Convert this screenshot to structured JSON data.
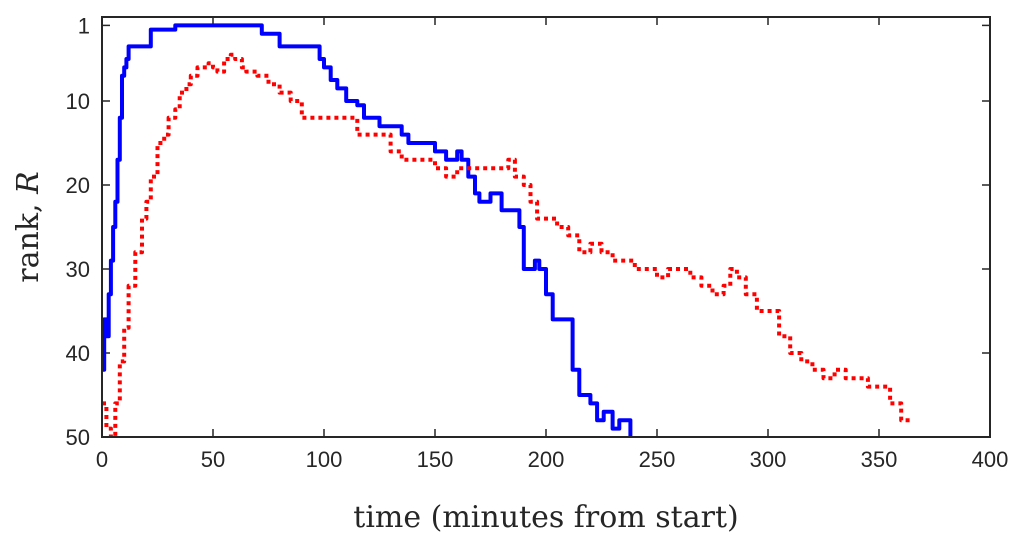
{
  "chart_data": {
    "type": "line",
    "title": "",
    "xlabel": "time (minutes from start)",
    "ylabel_text": "rank, ",
    "ylabel_var": "R",
    "xlim": [
      0,
      400
    ],
    "ylim": [
      50,
      0
    ],
    "y_reversed": true,
    "xticks": [
      0,
      50,
      100,
      150,
      200,
      250,
      300,
      350,
      400
    ],
    "yticks": [
      1,
      10,
      20,
      30,
      40,
      50
    ],
    "grid": false,
    "legend": "none",
    "series": [
      {
        "color": "#0000ff",
        "style": "solid",
        "x": [
          0,
          1,
          2,
          3,
          4,
          5,
          6,
          7,
          8,
          9,
          10,
          11,
          12,
          14,
          18,
          20,
          22,
          30,
          33,
          40,
          50,
          60,
          70,
          72,
          80,
          90,
          95,
          98,
          100,
          103,
          106,
          110,
          115,
          118,
          120,
          125,
          130,
          135,
          138,
          140,
          145,
          150,
          155,
          160,
          162,
          165,
          168,
          170,
          175,
          180,
          185,
          188,
          190,
          192,
          195,
          197,
          200,
          203,
          206,
          210,
          212,
          215,
          220,
          223,
          226,
          230,
          233,
          236,
          238
        ],
        "y": [
          42,
          36,
          38,
          33,
          29,
          25,
          22,
          17,
          12,
          7,
          6,
          5,
          3.5,
          3.5,
          3.5,
          3.5,
          1.5,
          1.5,
          1,
          1,
          1,
          1,
          1,
          2,
          3.5,
          3.5,
          3.5,
          5,
          6,
          7.5,
          8.5,
          10,
          10.5,
          12,
          12,
          13,
          13,
          14,
          15,
          15,
          15,
          16,
          17,
          16,
          17,
          19,
          21,
          22,
          21,
          23,
          23,
          25,
          30,
          30,
          29,
          30,
          33,
          36,
          36,
          36,
          42,
          45,
          46,
          48,
          47,
          49,
          48,
          48,
          50
        ]
      },
      {
        "color": "#ff0000",
        "style": "dotted",
        "x": [
          0,
          2,
          4,
          6,
          8,
          10,
          12,
          15,
          18,
          20,
          22,
          25,
          28,
          30,
          33,
          35,
          38,
          40,
          43,
          45,
          48,
          50,
          52,
          55,
          58,
          60,
          63,
          65,
          70,
          75,
          80,
          85,
          90,
          95,
          100,
          105,
          110,
          115,
          120,
          125,
          130,
          135,
          140,
          145,
          150,
          155,
          160,
          165,
          170,
          175,
          180,
          183,
          186,
          190,
          193,
          196,
          200,
          205,
          210,
          215,
          220,
          225,
          230,
          235,
          240,
          245,
          250,
          255,
          260,
          265,
          270,
          275,
          280,
          283,
          286,
          290,
          295,
          300,
          305,
          310,
          315,
          320,
          325,
          330,
          335,
          340,
          345,
          350,
          355,
          360,
          365
        ],
        "y": [
          46,
          49,
          50,
          46,
          41,
          37,
          32,
          28,
          24,
          22,
          19,
          15,
          14,
          12,
          11,
          9,
          8,
          7,
          6,
          6,
          5.5,
          6,
          6.5,
          5,
          4.5,
          5,
          6,
          6.5,
          7,
          8,
          9,
          10,
          12,
          12,
          12,
          12,
          12,
          14,
          14,
          14,
          16,
          17,
          17,
          17,
          18,
          19,
          18,
          18,
          18,
          18,
          18,
          17,
          19,
          20,
          22,
          24,
          24,
          25,
          26,
          28,
          27,
          28,
          29,
          29,
          30,
          30,
          31,
          30,
          30,
          31,
          32,
          33,
          32,
          30,
          31,
          33,
          35,
          35,
          38,
          40,
          41,
          42,
          43,
          42,
          43,
          43,
          44,
          44,
          46,
          48,
          48
        ]
      }
    ]
  }
}
